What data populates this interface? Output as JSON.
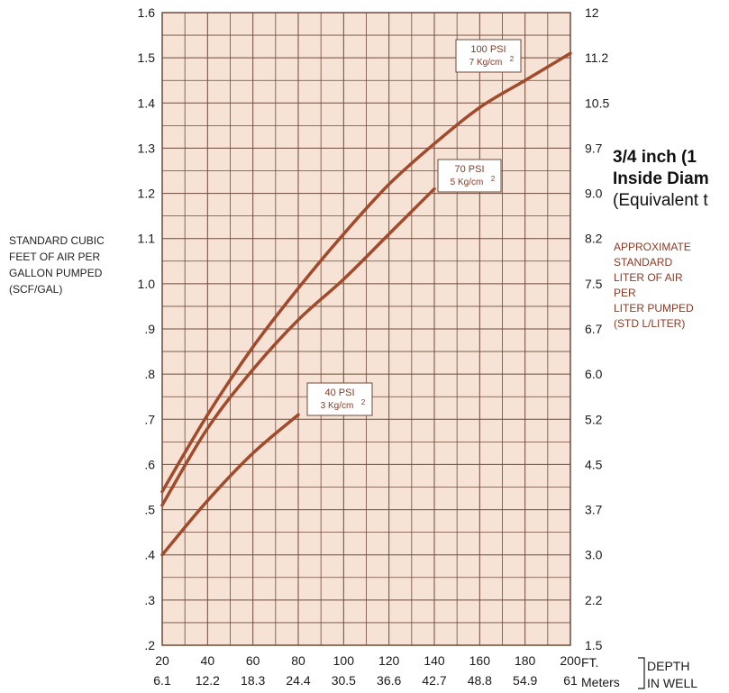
{
  "chart_data": {
    "type": "line",
    "x_ft": [
      20,
      40,
      60,
      80,
      100,
      120,
      140,
      160,
      180,
      200
    ],
    "x_meters": [
      "6.1",
      "12.2",
      "18.3",
      "24.4",
      "30.5",
      "36.6",
      "42.7",
      "48.8",
      "54.9",
      "61"
    ],
    "x_unit_ft": "FT.",
    "x_unit_m": "Meters",
    "x_axis_label": [
      "DEPTH",
      "IN WELL"
    ],
    "xlim": [
      20,
      200
    ],
    "ylim": [
      0.2,
      1.6
    ],
    "y_ticks_left": [
      ".2",
      ".3",
      ".4",
      ".5",
      ".6",
      ".7",
      ".8",
      ".9",
      "1.0",
      "1.1",
      "1.2",
      "1.3",
      "1.4",
      "1.5",
      "1.6"
    ],
    "y_ticks_right": [
      "1.5",
      "2.2",
      "3.0",
      "3.7",
      "4.5",
      "5.2",
      "6.0",
      "6.7",
      "7.5",
      "8.2",
      "9.0",
      "9.7",
      "10.5",
      "11.2",
      "12"
    ],
    "y_label_left": [
      "STANDARD CUBIC",
      "FEET OF AIR PER",
      "GALLON PUMPED",
      "(SCF/GAL)"
    ],
    "y_label_right": [
      "APPROXIMATE",
      "STANDARD",
      "LITER OF AIR",
      "PER",
      "LITER PUMPED",
      "(STD L/LITER)"
    ],
    "grid": true,
    "series": [
      {
        "name": "100 PSI",
        "name_metric": "7 Kg/cm",
        "points": [
          [
            20,
            0.54
          ],
          [
            40,
            0.71
          ],
          [
            60,
            0.86
          ],
          [
            80,
            0.99
          ],
          [
            100,
            1.11
          ],
          [
            120,
            1.22
          ],
          [
            140,
            1.31
          ],
          [
            160,
            1.39
          ],
          [
            180,
            1.45
          ],
          [
            200,
            1.51
          ]
        ]
      },
      {
        "name": "70 PSI",
        "name_metric": "5 Kg/cm",
        "points": [
          [
            20,
            0.51
          ],
          [
            40,
            0.68
          ],
          [
            60,
            0.81
          ],
          [
            80,
            0.92
          ],
          [
            100,
            1.01
          ],
          [
            120,
            1.11
          ],
          [
            140,
            1.21
          ]
        ]
      },
      {
        "name": "40 PSI",
        "name_metric": "3 Kg/cm",
        "points": [
          [
            20,
            0.4
          ],
          [
            40,
            0.52
          ],
          [
            60,
            0.625
          ],
          [
            80,
            0.71
          ]
        ]
      }
    ],
    "superscript": "2",
    "line_color": "#a24a2c",
    "grid_color": "#6e4a3a",
    "background_color": "#f6e3d5"
  },
  "side_text": {
    "title_line1": "3/4 inch (1",
    "title_line2": "Inside Diam",
    "subtitle": "(Equivalent t"
  }
}
